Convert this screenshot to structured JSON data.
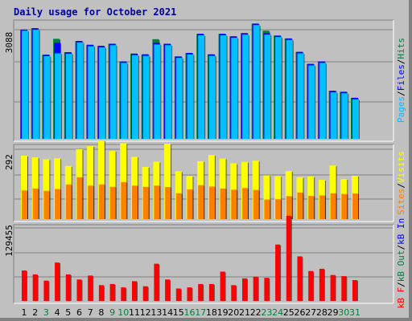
{
  "title": "Daily usage for October 2021",
  "colors": {
    "hits": "#008040",
    "files": "#0000ff",
    "pages": "#00c0ff",
    "visits": "#ffff00",
    "sites": "#ff8000",
    "kbin": "#0000ff",
    "kbout": "#008040",
    "kbf": "#ff0000",
    "green_day": "#008040",
    "panel": "#c0c0c0"
  },
  "chart_data": [
    {
      "type": "bar",
      "panel": "top",
      "y_tick_label": "3088",
      "y_tick_value": 3088,
      "legend": [
        "Pages",
        "/",
        "Files",
        "/",
        "Hits"
      ],
      "x": [
        1,
        2,
        3,
        4,
        5,
        6,
        7,
        8,
        9,
        10,
        11,
        12,
        13,
        14,
        15,
        16,
        17,
        18,
        19,
        20,
        21,
        22,
        23,
        24,
        25,
        26,
        27,
        28,
        29,
        30,
        31
      ],
      "series": [
        {
          "name": "Hits",
          "values": [
            3090,
            3130,
            2380,
            2830,
            2450,
            2770,
            2660,
            2630,
            2690,
            2190,
            2410,
            2390,
            2820,
            2690,
            2330,
            2430,
            2970,
            2390,
            2970,
            2900,
            2990,
            3260,
            3060,
            2920,
            2840,
            2460,
            2120,
            2190,
            1360,
            1330,
            1160
          ]
        },
        {
          "name": "Files",
          "values": [
            3090,
            3130,
            2380,
            2720,
            2450,
            2770,
            2660,
            2630,
            2690,
            2190,
            2410,
            2390,
            2720,
            2690,
            2330,
            2430,
            2970,
            2390,
            2970,
            2900,
            2990,
            3260,
            2990,
            2920,
            2840,
            2460,
            2120,
            2190,
            1360,
            1330,
            1160
          ]
        },
        {
          "name": "Pages",
          "values": [
            3060,
            3090,
            2340,
            2420,
            2410,
            2730,
            2620,
            2590,
            2650,
            2150,
            2370,
            2350,
            2670,
            2650,
            2290,
            2390,
            2930,
            2350,
            2930,
            2860,
            2950,
            3220,
            2950,
            2880,
            2800,
            2420,
            2080,
            2150,
            1320,
            1290,
            1120
          ]
        }
      ]
    },
    {
      "type": "bar",
      "panel": "middle",
      "y_tick_label": "292",
      "y_tick_value": 292,
      "legend": [
        "Sites",
        "/",
        "Visits"
      ],
      "x": [
        1,
        2,
        3,
        4,
        5,
        6,
        7,
        8,
        9,
        10,
        11,
        12,
        13,
        14,
        15,
        16,
        17,
        18,
        19,
        20,
        21,
        22,
        23,
        24,
        25,
        26,
        27,
        28,
        29,
        30,
        31
      ],
      "series": [
        {
          "name": "Visits",
          "values": [
            265,
            258,
            250,
            254,
            222,
            292,
            305,
            329,
            285,
            317,
            260,
            218,
            240,
            315,
            200,
            180,
            242,
            268,
            253,
            233,
            239,
            244,
            183,
            180,
            201,
            175,
            178,
            164,
            224,
            167,
            181
          ]
        },
        {
          "name": "Sites",
          "values": [
            120,
            128,
            118,
            126,
            145,
            175,
            140,
            145,
            135,
            155,
            140,
            135,
            140,
            134,
            108,
            124,
            142,
            136,
            128,
            123,
            130,
            122,
            82,
            83,
            96,
            111,
            97,
            99,
            108,
            105,
            107
          ]
        }
      ]
    },
    {
      "type": "bar",
      "panel": "bottom",
      "y_tick_label": "129455",
      "y_tick_value": 129455,
      "legend": [
        "kB F",
        "/",
        "kB Out",
        "/",
        "kB In"
      ],
      "x": [
        1,
        2,
        3,
        4,
        5,
        6,
        7,
        8,
        9,
        10,
        11,
        12,
        13,
        14,
        15,
        16,
        17,
        18,
        19,
        20,
        21,
        22,
        23,
        24,
        25,
        26,
        27,
        28,
        29,
        30,
        31
      ],
      "series": [
        {
          "name": "kB F",
          "values": [
            54000,
            47000,
            36000,
            68000,
            47000,
            38000,
            45000,
            28000,
            30000,
            24000,
            35000,
            26000,
            66000,
            38000,
            22000,
            24000,
            30000,
            30000,
            52000,
            28000,
            40000,
            43000,
            41000,
            100000,
            151000,
            79000,
            53000,
            57000,
            46000,
            44000,
            37000
          ]
        }
      ]
    }
  ]
}
